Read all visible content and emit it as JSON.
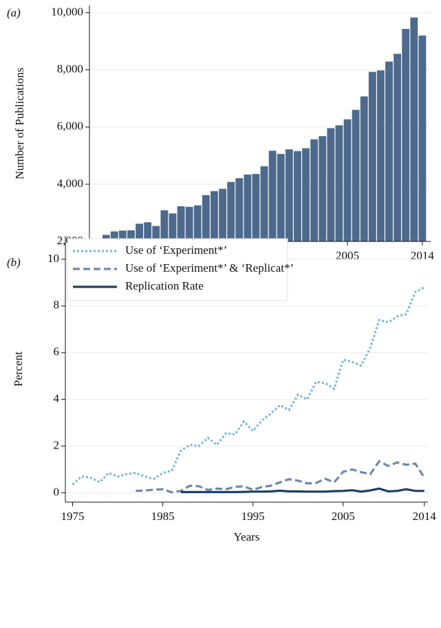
{
  "chart_data": [
    {
      "type": "bar",
      "panel_label": "(a)",
      "ylabel": "Number of Publications",
      "xlabel": "Years",
      "x": [
        1975,
        1976,
        1977,
        1978,
        1979,
        1980,
        1981,
        1982,
        1983,
        1984,
        1985,
        1986,
        1987,
        1988,
        1989,
        1990,
        1991,
        1992,
        1993,
        1994,
        1995,
        1996,
        1997,
        1998,
        1999,
        2000,
        2001,
        2002,
        2003,
        2004,
        2005,
        2006,
        2007,
        2008,
        2009,
        2010,
        2011,
        2012,
        2013,
        2014
      ],
      "values": [
        2050,
        2230,
        2350,
        2380,
        2390,
        2620,
        2670,
        2540,
        3090,
        2980,
        3230,
        3210,
        3260,
        3620,
        3760,
        3840,
        4080,
        4210,
        4340,
        4360,
        4630,
        5170,
        5060,
        5220,
        5160,
        5260,
        5570,
        5680,
        5960,
        6060,
        6270,
        6600,
        7070,
        7930,
        7980,
        8290,
        8560,
        9430,
        9830,
        9200
      ],
      "color": "#4d6a8c",
      "xlim": [
        1974,
        2015
      ],
      "xticks": [
        1975,
        1985,
        1995,
        2005,
        2014
      ],
      "ylim": [
        2000,
        10250
      ],
      "yticks": [
        {
          "value": 2000,
          "label": "2,000"
        },
        {
          "value": 4000,
          "label": "4,000"
        },
        {
          "value": 6000,
          "label": "6,000"
        },
        {
          "value": 8000,
          "label": "8,000"
        },
        {
          "value": 10000,
          "label": "10,000"
        }
      ],
      "grid": true
    },
    {
      "type": "line",
      "panel_label": "(b)",
      "ylabel": "Percent",
      "xlabel": "Years",
      "x": [
        1975,
        1976,
        1977,
        1978,
        1979,
        1980,
        1981,
        1982,
        1983,
        1984,
        1985,
        1986,
        1987,
        1988,
        1989,
        1990,
        1991,
        1992,
        1993,
        1994,
        1995,
        1996,
        1997,
        1998,
        1999,
        2000,
        2001,
        2002,
        2003,
        2004,
        2005,
        2006,
        2007,
        2008,
        2009,
        2010,
        2011,
        2012,
        2013,
        2014
      ],
      "series": [
        {
          "name": "Use of ‘Experiment*’",
          "color": "#7ab8df",
          "dash": "3,3",
          "values": [
            0.35,
            0.7,
            0.65,
            0.45,
            0.85,
            0.7,
            0.8,
            0.85,
            0.7,
            0.6,
            0.85,
            0.95,
            1.8,
            2.05,
            2.0,
            2.35,
            2.05,
            2.55,
            2.5,
            3.05,
            2.65,
            3.1,
            3.4,
            3.75,
            3.55,
            4.2,
            4.0,
            4.75,
            4.7,
            4.45,
            5.7,
            5.6,
            5.45,
            6.2,
            7.4,
            7.3,
            7.55,
            7.65,
            8.6,
            8.8
          ]
        },
        {
          "name": "Use of ‘Experiment*’ & ‘Replicat*’",
          "color": "#7088a8",
          "dash": "10,5",
          "values": [
            null,
            null,
            null,
            null,
            null,
            null,
            null,
            0.08,
            0.1,
            0.13,
            0.15,
            0.02,
            0.08,
            0.3,
            0.28,
            0.12,
            0.18,
            0.15,
            0.25,
            0.28,
            0.12,
            0.25,
            0.3,
            0.45,
            0.58,
            0.52,
            0.4,
            0.42,
            0.6,
            0.45,
            0.9,
            1.0,
            0.88,
            0.8,
            1.35,
            1.15,
            1.3,
            1.2,
            1.25,
            0.65
          ]
        },
        {
          "name": "Replication Rate",
          "color": "#1f3f66",
          "dash": "none",
          "values": [
            null,
            null,
            null,
            null,
            null,
            null,
            null,
            null,
            null,
            null,
            null,
            null,
            0.03,
            0.03,
            0.03,
            0.03,
            0.03,
            0.03,
            0.03,
            0.04,
            0.05,
            0.05,
            0.06,
            0.09,
            0.06,
            0.06,
            0.05,
            0.05,
            0.05,
            0.07,
            0.08,
            0.11,
            0.05,
            0.1,
            0.18,
            0.06,
            0.08,
            0.15,
            0.08,
            0.08
          ]
        }
      ],
      "xlim": [
        1974.2,
        2014.4
      ],
      "xticks": [
        1975,
        1985,
        1995,
        2005,
        2014
      ],
      "ylim": [
        -0.4,
        11
      ],
      "yticks": [
        0,
        2,
        4,
        6,
        8,
        10
      ],
      "grid": true,
      "legend": "upper-left"
    }
  ]
}
